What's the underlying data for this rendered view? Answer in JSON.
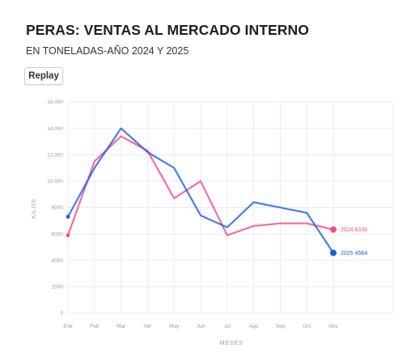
{
  "header": {
    "title": "PERAS: VENTAS AL MERCADO INTERNO",
    "subtitle": "EN TONELADAS-AÑO 2024 Y 2025"
  },
  "controls": {
    "replay_label": "Replay"
  },
  "chart_data": {
    "type": "line",
    "xlabel": "MESES",
    "ylabel": "KILOS",
    "categories": [
      "Ene",
      "Feb",
      "Mar",
      "Abr",
      "May",
      "Jun",
      "Jul",
      "Ago",
      "Sep",
      "Oct",
      "Nov"
    ],
    "ylim": [
      0,
      16000
    ],
    "yticks": [
      0,
      2000,
      4000,
      6000,
      8000,
      10000,
      12000,
      14000,
      16000
    ],
    "ytick_labels": [
      "0",
      "2000",
      "4000",
      "6000",
      "8000",
      "10.000",
      "12.000",
      "14.000",
      "16.000"
    ],
    "grid": true,
    "series": [
      {
        "name": "2024",
        "color": "#f0508a",
        "values": [
          5900,
          11500,
          13400,
          12300,
          8700,
          10000,
          5900,
          6600,
          6800,
          6800,
          6336
        ],
        "end_label": "2024 6336"
      },
      {
        "name": "2025",
        "color": "#1f5fd6",
        "values": [
          7300,
          11000,
          14000,
          12200,
          11000,
          7400,
          6500,
          8400,
          8000,
          7600,
          4564
        ],
        "end_label": "2025 4564"
      }
    ]
  }
}
